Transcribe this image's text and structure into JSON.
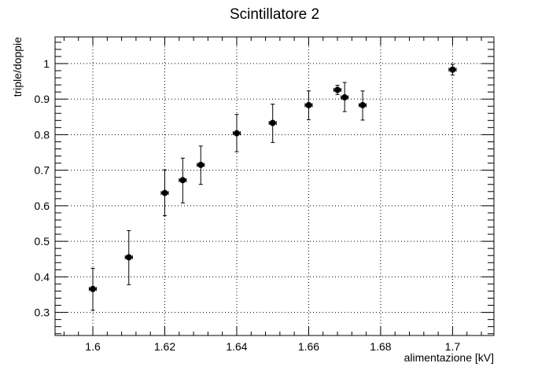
{
  "chart_data": {
    "type": "scatter",
    "title": "Scintillatore 2",
    "xlabel": "alimentazione [kV]",
    "ylabel": "triple/doppie",
    "xlim": [
      1.5895,
      1.7115
    ],
    "ylim": [
      0.235,
      1.075
    ],
    "grid": true,
    "x_ticks": [
      1.6,
      1.62,
      1.64,
      1.66,
      1.68,
      1.7
    ],
    "x_tick_labels": [
      "1.6",
      "1.62",
      "1.64",
      "1.66",
      "1.68",
      "1.7"
    ],
    "y_ticks": [
      0.3,
      0.4,
      0.5,
      0.6,
      0.7,
      0.8,
      0.9,
      1.0
    ],
    "y_tick_labels": [
      "0.3",
      "0.4",
      "0.5",
      "0.6",
      "0.7",
      "0.8",
      "0.9",
      "1"
    ],
    "x_error": 0.001,
    "points": [
      {
        "x": 1.6,
        "y": 0.366,
        "yerr_low": 0.06,
        "yerr_high": 0.058
      },
      {
        "x": 1.61,
        "y": 0.455,
        "yerr_low": 0.077,
        "yerr_high": 0.075
      },
      {
        "x": 1.62,
        "y": 0.636,
        "yerr_low": 0.064,
        "yerr_high": 0.065
      },
      {
        "x": 1.625,
        "y": 0.672,
        "yerr_low": 0.064,
        "yerr_high": 0.062
      },
      {
        "x": 1.63,
        "y": 0.715,
        "yerr_low": 0.055,
        "yerr_high": 0.053
      },
      {
        "x": 1.64,
        "y": 0.804,
        "yerr_low": 0.052,
        "yerr_high": 0.053
      },
      {
        "x": 1.65,
        "y": 0.833,
        "yerr_low": 0.055,
        "yerr_high": 0.053
      },
      {
        "x": 1.66,
        "y": 0.883,
        "yerr_low": 0.041,
        "yerr_high": 0.04
      },
      {
        "x": 1.668,
        "y": 0.926,
        "yerr_low": 0.013,
        "yerr_high": 0.013
      },
      {
        "x": 1.67,
        "y": 0.905,
        "yerr_low": 0.04,
        "yerr_high": 0.042
      },
      {
        "x": 1.675,
        "y": 0.883,
        "yerr_low": 0.042,
        "yerr_high": 0.04
      },
      {
        "x": 1.7,
        "y": 0.983,
        "yerr_low": 0.015,
        "yerr_high": 0.015
      }
    ]
  }
}
